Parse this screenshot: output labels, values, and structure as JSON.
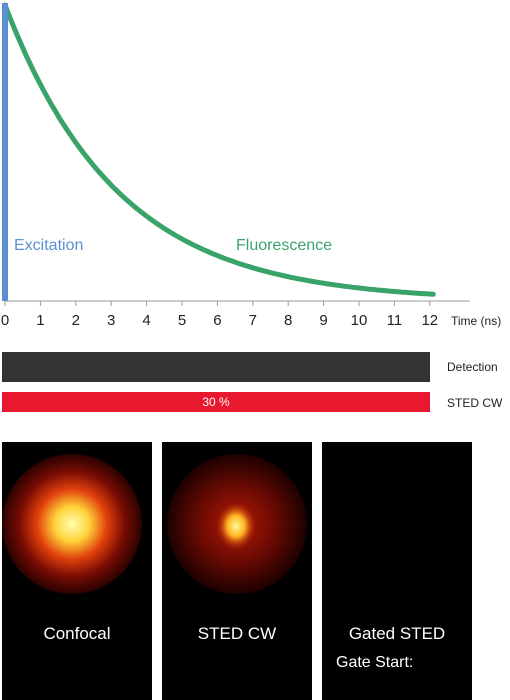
{
  "colors": {
    "excitation": "#5b8fd1",
    "fluorescence": "#3aa36a",
    "detection": "#333333",
    "sted": "#e8192f",
    "panel_bg": "#000000"
  },
  "plot": {
    "excitation_label": "Excitation",
    "fluorescence_label": "Fluorescence",
    "x_axis_label": "Time (ns)",
    "x_ticks": [
      "0",
      "1",
      "2",
      "3",
      "4",
      "5",
      "6",
      "7",
      "8",
      "9",
      "10",
      "11",
      "12"
    ]
  },
  "chart_data": {
    "type": "line",
    "xlabel": "Time (ns)",
    "xlim": [
      0,
      12.5
    ],
    "ylim": [
      0,
      1
    ],
    "series": [
      {
        "name": "Fluorescence",
        "tau_ns": 3.2,
        "amplitude": 1.0
      }
    ]
  },
  "bars": {
    "detection_label": "Detection",
    "sted_label": "STED CW",
    "sted_power": "30 %"
  },
  "panels": [
    {
      "caption": "Confocal",
      "sub": ""
    },
    {
      "caption": "STED CW",
      "sub": ""
    },
    {
      "caption": "Gated STED",
      "sub": "Gate Start:"
    }
  ]
}
